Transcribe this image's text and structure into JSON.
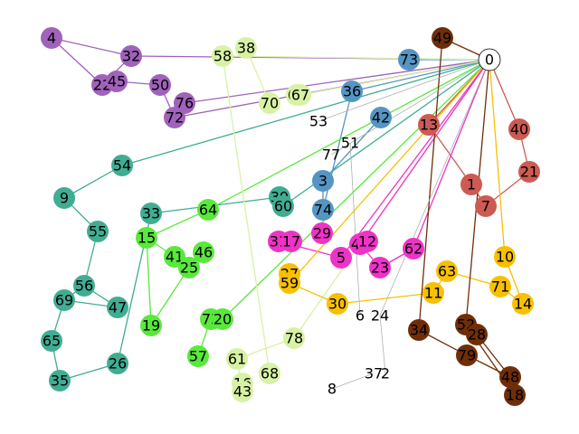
{
  "graph": {
    "groups": {
      "root": {
        "color": "#ffffff",
        "stroke": "#000000"
      },
      "purple": {
        "color": "#a062bb"
      },
      "blue": {
        "color": "#5595c4"
      },
      "red": {
        "color": "#cc5b53"
      },
      "teal": {
        "color": "#40ad93"
      },
      "green": {
        "color": "#59e83c"
      },
      "lime": {
        "color": "#d8f2a5"
      },
      "magenta": {
        "color": "#ee33c7"
      },
      "yellow": {
        "color": "#f8c002"
      },
      "brown": {
        "color": "#6f2e08"
      },
      "plain": {
        "color": "none"
      }
    },
    "nodes": [
      {
        "id": "0",
        "group": "root"
      },
      {
        "id": "4",
        "group": "purple"
      },
      {
        "id": "32",
        "group": "purple"
      },
      {
        "id": "22",
        "group": "purple"
      },
      {
        "id": "45",
        "group": "purple"
      },
      {
        "id": "50",
        "group": "purple"
      },
      {
        "id": "76",
        "group": "purple"
      },
      {
        "id": "72",
        "group": "purple"
      },
      {
        "id": "73",
        "group": "blue"
      },
      {
        "id": "36",
        "group": "blue"
      },
      {
        "id": "42",
        "group": "blue"
      },
      {
        "id": "3",
        "group": "blue"
      },
      {
        "id": "74",
        "group": "blue"
      },
      {
        "id": "13",
        "group": "red"
      },
      {
        "id": "40",
        "group": "red"
      },
      {
        "id": "21",
        "group": "red"
      },
      {
        "id": "1",
        "group": "red"
      },
      {
        "id": "7",
        "group": "red"
      },
      {
        "id": "54",
        "group": "teal"
      },
      {
        "id": "9",
        "group": "teal"
      },
      {
        "id": "55",
        "group": "teal"
      },
      {
        "id": "56",
        "group": "teal"
      },
      {
        "id": "69",
        "group": "teal"
      },
      {
        "id": "47",
        "group": "teal"
      },
      {
        "id": "65",
        "group": "teal"
      },
      {
        "id": "35",
        "group": "teal"
      },
      {
        "id": "26",
        "group": "teal"
      },
      {
        "id": "33",
        "group": "teal"
      },
      {
        "id": "39",
        "group": "teal"
      },
      {
        "id": "60",
        "group": "teal"
      },
      {
        "id": "64",
        "group": "green"
      },
      {
        "id": "15",
        "group": "green"
      },
      {
        "id": "41",
        "group": "green"
      },
      {
        "id": "46",
        "group": "green"
      },
      {
        "id": "25",
        "group": "green"
      },
      {
        "id": "19",
        "group": "green"
      },
      {
        "id": "75",
        "group": "green"
      },
      {
        "id": "20",
        "group": "green"
      },
      {
        "id": "57",
        "group": "green"
      },
      {
        "id": "58",
        "group": "lime"
      },
      {
        "id": "38",
        "group": "lime"
      },
      {
        "id": "70",
        "group": "lime"
      },
      {
        "id": "66",
        "group": "lime"
      },
      {
        "id": "67",
        "group": "lime"
      },
      {
        "id": "78",
        "group": "lime"
      },
      {
        "id": "61",
        "group": "lime"
      },
      {
        "id": "16",
        "group": "lime"
      },
      {
        "id": "43",
        "group": "lime"
      },
      {
        "id": "68",
        "group": "lime"
      },
      {
        "id": "31",
        "group": "magenta"
      },
      {
        "id": "17",
        "group": "magenta"
      },
      {
        "id": "29",
        "group": "magenta"
      },
      {
        "id": "5",
        "group": "magenta"
      },
      {
        "id": "44",
        "group": "magenta"
      },
      {
        "id": "12",
        "group": "magenta"
      },
      {
        "id": "23",
        "group": "magenta"
      },
      {
        "id": "62",
        "group": "magenta"
      },
      {
        "id": "27",
        "group": "yellow"
      },
      {
        "id": "59",
        "group": "yellow"
      },
      {
        "id": "30",
        "group": "yellow"
      },
      {
        "id": "11",
        "group": "yellow"
      },
      {
        "id": "63",
        "group": "yellow"
      },
      {
        "id": "71",
        "group": "yellow"
      },
      {
        "id": "10",
        "group": "yellow"
      },
      {
        "id": "14",
        "group": "yellow"
      },
      {
        "id": "49",
        "group": "brown"
      },
      {
        "id": "34",
        "group": "brown"
      },
      {
        "id": "52",
        "group": "brown"
      },
      {
        "id": "28",
        "group": "brown"
      },
      {
        "id": "79",
        "group": "brown"
      },
      {
        "id": "48",
        "group": "brown"
      },
      {
        "id": "18",
        "group": "brown"
      },
      {
        "id": "53",
        "group": "plain"
      },
      {
        "id": "51",
        "group": "plain"
      },
      {
        "id": "77",
        "group": "plain"
      },
      {
        "id": "6",
        "group": "plain"
      },
      {
        "id": "24",
        "group": "plain"
      },
      {
        "id": "8",
        "group": "plain"
      },
      {
        "id": "37",
        "group": "plain"
      },
      {
        "id": "2",
        "group": "plain"
      }
    ],
    "edges": [
      {
        "from": "4",
        "to": "32",
        "group": "purple"
      },
      {
        "from": "4",
        "to": "22",
        "group": "purple"
      },
      {
        "from": "32",
        "to": "22",
        "group": "purple"
      },
      {
        "from": "22",
        "to": "45",
        "group": "purple"
      },
      {
        "from": "45",
        "to": "50",
        "group": "purple"
      },
      {
        "from": "50",
        "to": "72",
        "group": "purple"
      },
      {
        "from": "32",
        "to": "0",
        "group": "purple"
      },
      {
        "from": "76",
        "to": "0",
        "group": "purple"
      },
      {
        "from": "72",
        "to": "0",
        "group": "purple"
      },
      {
        "from": "73",
        "to": "0",
        "group": "blue"
      },
      {
        "from": "36",
        "to": "0",
        "group": "blue"
      },
      {
        "from": "36",
        "to": "74",
        "group": "blue"
      },
      {
        "from": "42",
        "to": "3",
        "group": "blue"
      },
      {
        "from": "3",
        "to": "74",
        "group": "blue"
      },
      {
        "from": "13",
        "to": "0",
        "group": "red"
      },
      {
        "from": "40",
        "to": "0",
        "group": "red"
      },
      {
        "from": "40",
        "to": "21",
        "group": "red"
      },
      {
        "from": "21",
        "to": "7",
        "group": "red"
      },
      {
        "from": "13",
        "to": "1",
        "group": "red"
      },
      {
        "from": "1",
        "to": "7",
        "group": "red"
      },
      {
        "from": "54",
        "to": "0",
        "group": "teal"
      },
      {
        "from": "54",
        "to": "9",
        "group": "teal"
      },
      {
        "from": "9",
        "to": "55",
        "group": "teal"
      },
      {
        "from": "55",
        "to": "56",
        "group": "teal"
      },
      {
        "from": "56",
        "to": "69",
        "group": "teal"
      },
      {
        "from": "56",
        "to": "47",
        "group": "teal"
      },
      {
        "from": "69",
        "to": "47",
        "group": "teal"
      },
      {
        "from": "69",
        "to": "65",
        "group": "teal"
      },
      {
        "from": "65",
        "to": "35",
        "group": "teal"
      },
      {
        "from": "35",
        "to": "26",
        "group": "teal"
      },
      {
        "from": "26",
        "to": "33",
        "group": "teal"
      },
      {
        "from": "33",
        "to": "39",
        "group": "teal"
      },
      {
        "from": "39",
        "to": "60",
        "group": "teal"
      },
      {
        "from": "60",
        "to": "0",
        "group": "teal"
      },
      {
        "from": "64",
        "to": "0",
        "group": "green"
      },
      {
        "from": "15",
        "to": "64",
        "group": "green"
      },
      {
        "from": "15",
        "to": "41",
        "group": "green"
      },
      {
        "from": "41",
        "to": "25",
        "group": "green"
      },
      {
        "from": "25",
        "to": "19",
        "group": "green"
      },
      {
        "from": "15",
        "to": "19",
        "group": "green"
      },
      {
        "from": "75",
        "to": "57",
        "group": "green"
      },
      {
        "from": "20",
        "to": "0",
        "group": "green"
      },
      {
        "from": "58",
        "to": "0",
        "group": "lime"
      },
      {
        "from": "58",
        "to": "68",
        "group": "lime"
      },
      {
        "from": "38",
        "to": "70",
        "group": "lime"
      },
      {
        "from": "67",
        "to": "0",
        "group": "lime"
      },
      {
        "from": "78",
        "to": "61",
        "group": "lime"
      },
      {
        "from": "61",
        "to": "43",
        "group": "lime"
      },
      {
        "from": "78",
        "to": "0",
        "group": "lime"
      },
      {
        "from": "31",
        "to": "5",
        "group": "magenta"
      },
      {
        "from": "5",
        "to": "0",
        "group": "magenta"
      },
      {
        "from": "44",
        "to": "0",
        "group": "magenta"
      },
      {
        "from": "44",
        "to": "23",
        "group": "magenta"
      },
      {
        "from": "23",
        "to": "62",
        "group": "magenta"
      },
      {
        "from": "62",
        "to": "0",
        "group": "magenta"
      },
      {
        "from": "59",
        "to": "0",
        "group": "yellow"
      },
      {
        "from": "59",
        "to": "30",
        "group": "yellow"
      },
      {
        "from": "30",
        "to": "11",
        "group": "yellow"
      },
      {
        "from": "11",
        "to": "63",
        "group": "yellow"
      },
      {
        "from": "63",
        "to": "71",
        "group": "yellow"
      },
      {
        "from": "71",
        "to": "14",
        "group": "yellow"
      },
      {
        "from": "10",
        "to": "14",
        "group": "yellow"
      },
      {
        "from": "10",
        "to": "0",
        "group": "yellow"
      },
      {
        "from": "49",
        "to": "0",
        "group": "brown"
      },
      {
        "from": "49",
        "to": "34",
        "group": "brown"
      },
      {
        "from": "34",
        "to": "79",
        "group": "brown"
      },
      {
        "from": "79",
        "to": "48",
        "group": "brown"
      },
      {
        "from": "52",
        "to": "0",
        "group": "brown"
      },
      {
        "from": "52",
        "to": "18",
        "group": "brown"
      },
      {
        "from": "28",
        "to": "48",
        "group": "brown"
      },
      {
        "from": "53",
        "to": "0",
        "group": "plain"
      },
      {
        "from": "51",
        "to": "6",
        "group": "plain"
      },
      {
        "from": "77",
        "to": "0",
        "group": "plain"
      },
      {
        "from": "24",
        "to": "2",
        "group": "plain"
      },
      {
        "from": "8",
        "to": "37",
        "group": "plain"
      },
      {
        "from": "24",
        "to": "0",
        "group": "plain"
      }
    ]
  }
}
